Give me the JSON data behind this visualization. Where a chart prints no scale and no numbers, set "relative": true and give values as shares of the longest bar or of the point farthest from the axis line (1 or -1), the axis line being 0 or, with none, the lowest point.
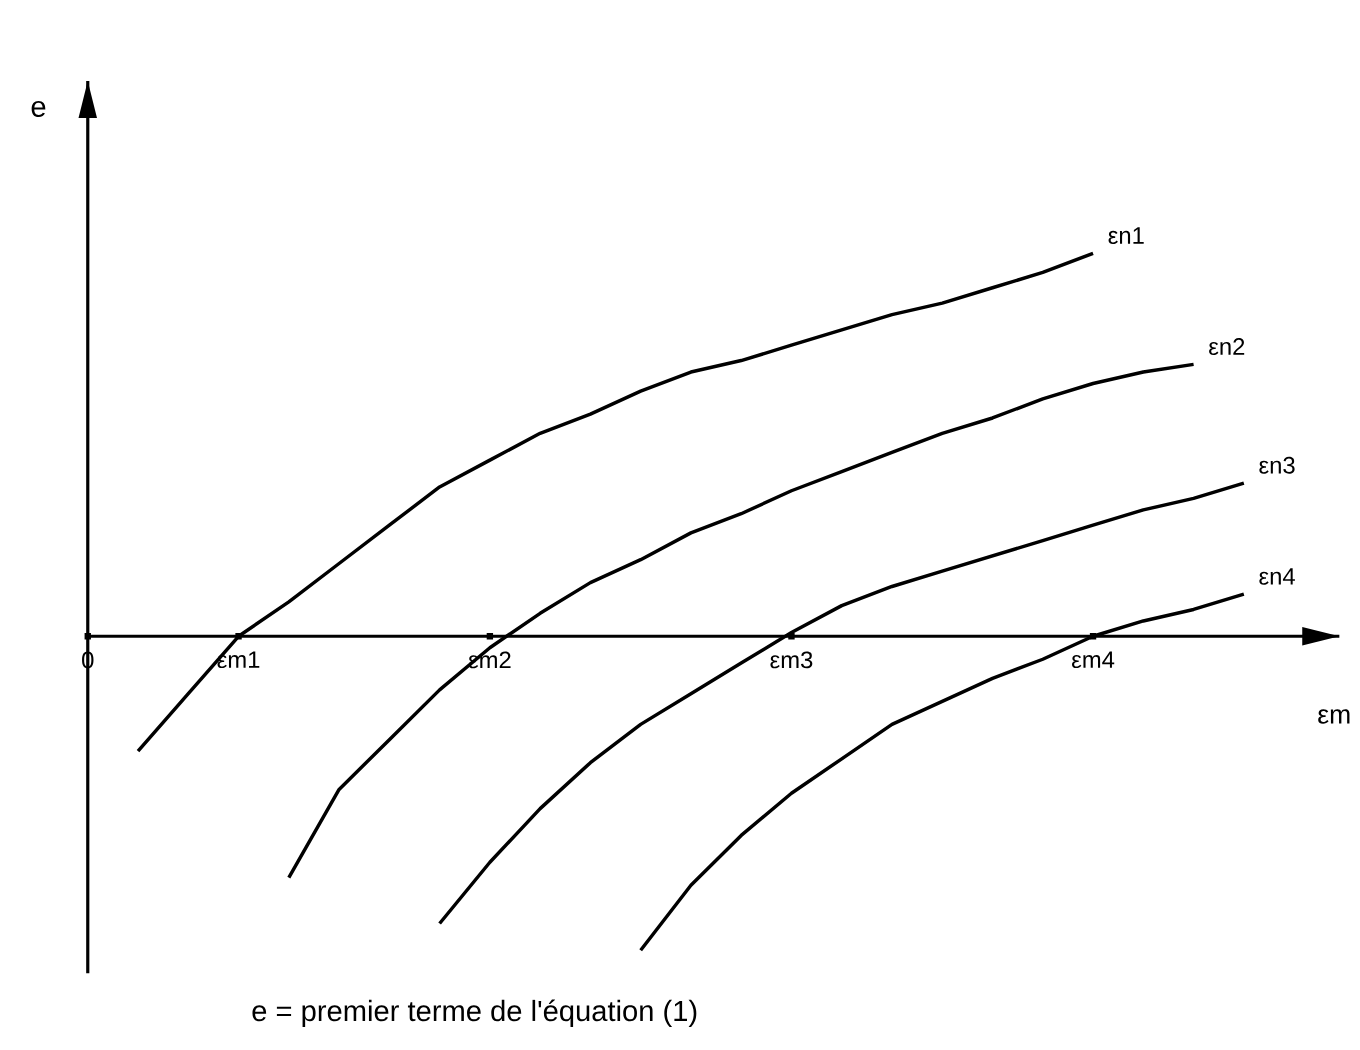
{
  "chart_data": {
    "type": "line",
    "relative": true,
    "xlabel": "εm",
    "ylabel": "e",
    "annotations": [
      "e = premier terme de l'équation (1)"
    ],
    "categories": [
      "0",
      null,
      null,
      "εm1",
      null,
      null,
      null,
      null,
      "εm2",
      null,
      null,
      null,
      null,
      null,
      "εm3",
      null,
      null,
      null,
      null,
      null,
      "εm4",
      null,
      null,
      null
    ],
    "marker": "none",
    "line_style": "solid",
    "series": [
      {
        "name": "εn1",
        "color": "#000000",
        "values": [
          null,
          -0.3,
          -0.15,
          0,
          0.09,
          0.19,
          0.29,
          0.39,
          0.46,
          0.53,
          0.58,
          0.64,
          0.69,
          0.72,
          0.76,
          0.8,
          0.84,
          0.87,
          0.91,
          0.95,
          1.0,
          null,
          null,
          null
        ]
      },
      {
        "name": "εn2",
        "color": "#000000",
        "values": [
          null,
          null,
          null,
          null,
          -0.63,
          -0.4,
          -0.27,
          -0.14,
          -0.03,
          0.06,
          0.14,
          0.2,
          0.27,
          0.32,
          0.38,
          0.43,
          0.48,
          0.53,
          0.57,
          0.62,
          0.66,
          0.69,
          0.71,
          null
        ]
      },
      {
        "name": "εn3",
        "color": "#000000",
        "values": [
          null,
          null,
          null,
          null,
          null,
          null,
          null,
          -0.75,
          -0.59,
          -0.45,
          -0.33,
          -0.23,
          -0.15,
          -0.07,
          0.01,
          0.08,
          0.13,
          0.17,
          0.21,
          0.25,
          0.29,
          0.33,
          0.36,
          0.4
        ]
      },
      {
        "name": "εn4",
        "color": "#000000",
        "values": [
          null,
          null,
          null,
          null,
          null,
          null,
          null,
          null,
          null,
          null,
          null,
          -0.82,
          -0.65,
          -0.52,
          -0.41,
          -0.32,
          -0.23,
          -0.17,
          -0.11,
          -0.06,
          0,
          0.04,
          0.07,
          0.11
        ]
      }
    ]
  }
}
